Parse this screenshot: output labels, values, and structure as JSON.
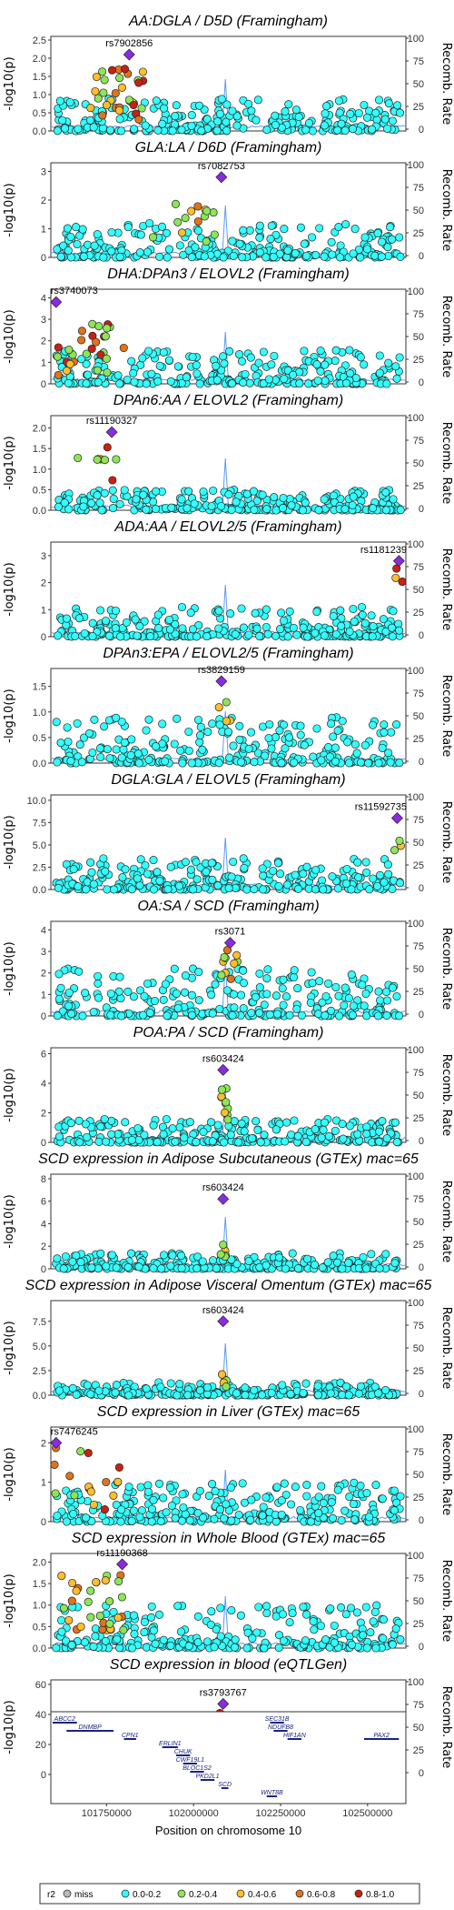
{
  "chart_data": {
    "type": "scatter",
    "xlabel": "Position on chromosome 10",
    "x_ticks": [
      101750000,
      102000000,
      102250000,
      102500000
    ],
    "xlim": [
      101590000,
      102610000
    ],
    "ylabel_left": "-log10(p)",
    "ylabel_right": "Recomb. Rate",
    "right_ticks": [
      0,
      25,
      50,
      75,
      100
    ],
    "ld_colors": {
      "miss": "#b8b8b8",
      "0.0-0.2": "#33ffff",
      "0.2-0.4": "#8ce657",
      "0.4-0.6": "#ffbe2b",
      "0.6-0.8": "#e0731c",
      "0.8-1.0": "#c72114"
    },
    "lead_color": "#8a2be2",
    "legend": {
      "title": "r2",
      "items": [
        {
          "key": "miss",
          "label": "miss"
        },
        {
          "key": "0.0-0.2",
          "label": "0.0-0.2"
        },
        {
          "key": "0.2-0.4",
          "label": "0.2-0.4"
        },
        {
          "key": "0.4-0.6",
          "label": "0.4-0.6"
        },
        {
          "key": "0.6-0.8",
          "label": "0.6-0.8"
        },
        {
          "key": "0.8-1.0",
          "label": "0.8-1.0"
        }
      ]
    },
    "panels": [
      {
        "title": "AA:DGLA / D5D (Framingham)",
        "ylim": [
          0,
          2.6
        ],
        "yticks": [
          0.0,
          0.5,
          1.0,
          1.5,
          2.0,
          2.5
        ],
        "tick_dec": 1,
        "lead": {
          "snp": "rs7902856",
          "x": 101815000,
          "y": 2.1
        },
        "scatter": {
          "cluster": "early-ld",
          "peak": 1.5,
          "bg": 0.9
        },
        "recomb_peaks": [
          102090000
        ]
      },
      {
        "title": "GLA:LA / D6D (Framingham)",
        "ylim": [
          0,
          3.3
        ],
        "yticks": [
          0,
          1,
          2,
          3
        ],
        "tick_dec": 0,
        "lead": {
          "snp": "rs7082753",
          "x": 102080000,
          "y": 2.8
        },
        "scatter": {
          "cluster": "mid-ld",
          "peak": 2.0,
          "bg": 1.2
        },
        "recomb_peaks": [
          102090000
        ]
      },
      {
        "title": "DHA:DPAn3 / ELOVL2 (Framingham)",
        "ylim": [
          0,
          4.4
        ],
        "yticks": [
          0,
          1,
          2,
          3,
          4
        ],
        "tick_dec": 0,
        "lead": {
          "snp": "rs3740073",
          "x": 101605000,
          "y": 3.8
        },
        "scatter": {
          "cluster": "left-ld",
          "peak": 2.8,
          "bg": 1.6
        },
        "recomb_peaks": [
          102090000
        ]
      },
      {
        "title": "DPAn6:AA / ELOVL2 (Framingham)",
        "ylim": [
          0,
          2.3
        ],
        "yticks": [
          0.0,
          0.5,
          1.0,
          1.5,
          2.0
        ],
        "tick_dec": 1,
        "lead": {
          "snp": "rs11190327",
          "x": 101765000,
          "y": 1.9
        },
        "scatter": {
          "cluster": "sparse-ld",
          "peak": 1.6,
          "bg": 0.5
        },
        "recomb_peaks": [
          102090000
        ]
      },
      {
        "title": "ADA:AA / ELOVL2/5 (Framingham)",
        "ylim": [
          0,
          3.5
        ],
        "yticks": [
          0,
          1,
          2,
          3
        ],
        "tick_dec": 0,
        "lead": {
          "snp": "rs1181239",
          "x": 102590000,
          "y": 2.8
        },
        "scatter": {
          "cluster": "right-ld",
          "peak": 2.2,
          "bg": 1.1
        },
        "recomb_peaks": [
          102090000
        ]
      },
      {
        "title": "DPAn3:EPA / ELOVL2/5 (Framingham)",
        "ylim": [
          0,
          1.85
        ],
        "yticks": [
          0.0,
          0.5,
          1.0,
          1.5
        ],
        "tick_dec": 1,
        "lead": {
          "snp": "rs3829159",
          "x": 102080000,
          "y": 1.6
        },
        "scatter": {
          "cluster": "mid-few",
          "peak": 1.4,
          "bg": 0.9
        },
        "recomb_peaks": [
          102090000
        ]
      },
      {
        "title": "DGLA:GLA / ELOVL5 (Framingham)",
        "ylim": [
          0,
          10.6
        ],
        "yticks": [
          0.0,
          2.5,
          5.0,
          7.5,
          10.0
        ],
        "tick_dec": 1,
        "lead": {
          "snp": "rs11592735",
          "x": 102585000,
          "y": 8.0
        },
        "scatter": {
          "cluster": "right-few",
          "peak": 6.0,
          "bg": 3.5
        },
        "recomb_peaks": [
          102090000
        ]
      },
      {
        "title": "OA:SA / SCD (Framingham)",
        "ylim": [
          0,
          4.4
        ],
        "yticks": [
          0,
          1,
          2,
          3,
          4
        ],
        "tick_dec": 0,
        "lead": {
          "snp": "rs3071",
          "x": 102105000,
          "y": 3.4
        },
        "scatter": {
          "cluster": "scd",
          "peak": 3.0,
          "bg": 2.2
        },
        "recomb_peaks": [
          102090000
        ]
      },
      {
        "title": "POA:PA / SCD (Framingham)",
        "ylim": [
          0,
          6.4
        ],
        "yticks": [
          0,
          2,
          4,
          6
        ],
        "tick_dec": 0,
        "lead": {
          "snp": "rs603424",
          "x": 102085000,
          "y": 4.9
        },
        "scatter": {
          "cluster": "scd-tall",
          "peak": 4.0,
          "bg": 1.6
        },
        "recomb_peaks": [
          102090000
        ]
      },
      {
        "title": "SCD expression in Adipose Subcutaneous (GTEx) mac=65",
        "ylim": [
          0,
          8.4
        ],
        "yticks": [
          0,
          2,
          4,
          6,
          8
        ],
        "tick_dec": 0,
        "lead": {
          "snp": "rs603424",
          "x": 102085000,
          "y": 6.2
        },
        "scatter": {
          "cluster": "scd-low",
          "peak": 2.6,
          "bg": 1.4
        },
        "recomb_peaks": [
          102090000
        ]
      },
      {
        "title": "SCD expression in Adipose Visceral Omentum (GTEx) mac=65",
        "ylim": [
          0,
          9.6
        ],
        "yticks": [
          0.0,
          2.5,
          5.0,
          7.5
        ],
        "tick_dec": 1,
        "lead": {
          "snp": "rs603424",
          "x": 102085000,
          "y": 7.5
        },
        "scatter": {
          "cluster": "scd-low",
          "peak": 2.5,
          "bg": 1.3
        },
        "recomb_peaks": [
          102090000
        ]
      },
      {
        "title": "SCD expression in Liver (GTEx) mac=65",
        "ylim": [
          0,
          2.4
        ],
        "yticks": [
          0,
          1,
          2
        ],
        "tick_dec": 0,
        "lead": {
          "snp": "rs7476245",
          "x": 101605000,
          "y": 2.0
        },
        "scatter": {
          "cluster": "liver",
          "peak": 1.8,
          "bg": 1.0
        },
        "recomb_peaks": [
          102090000
        ]
      },
      {
        "title": "SCD expression in Whole Blood (GTEx) mac=65",
        "ylim": [
          0,
          2.2
        ],
        "yticks": [
          0.0,
          0.5,
          1.0,
          1.5,
          2.0
        ],
        "tick_dec": 1,
        "lead": {
          "snp": "rs11190368",
          "x": 101795000,
          "y": 1.95
        },
        "scatter": {
          "cluster": "blood",
          "peak": 1.6,
          "bg": 1.0
        },
        "recomb_peaks": [
          102090000
        ]
      },
      {
        "title": "SCD expression in blood (eQTLGen)",
        "ylim": [
          0,
          63
        ],
        "yticks": [
          0,
          20,
          40,
          60
        ],
        "tick_dec": 0,
        "lead": {
          "snp": "rs3793767",
          "x": 102085000,
          "y": 47
        },
        "scatter": {
          "cluster": "eqtlgen",
          "peak": 40,
          "bg": 12
        },
        "recomb_peaks": [
          102090000
        ]
      }
    ],
    "genes": [
      {
        "name": "ABCC2",
        "start": 101595000,
        "end": 101665000,
        "row": 0
      },
      {
        "name": "DNMBP",
        "start": 101635000,
        "end": 101770000,
        "row": 1
      },
      {
        "name": "CPN1",
        "start": 101800000,
        "end": 101835000,
        "row": 2
      },
      {
        "name": "ERLIN1",
        "start": 101910000,
        "end": 101955000,
        "row": 3
      },
      {
        "name": "CHUK",
        "start": 101950000,
        "end": 101990000,
        "row": 4
      },
      {
        "name": "CWF19L1",
        "start": 101970000,
        "end": 102010000,
        "row": 5
      },
      {
        "name": "BLOC1S2",
        "start": 101990000,
        "end": 102030000,
        "row": 6
      },
      {
        "name": "PKD2L1",
        "start": 102020000,
        "end": 102060000,
        "row": 7
      },
      {
        "name": "SCD",
        "start": 102080000,
        "end": 102100000,
        "row": 8
      },
      {
        "name": "SEC31B",
        "start": 102220000,
        "end": 102260000,
        "row": 0
      },
      {
        "name": "NDUFB8",
        "start": 102230000,
        "end": 102270000,
        "row": 1
      },
      {
        "name": "HIF1AN",
        "start": 102270000,
        "end": 102310000,
        "row": 2
      },
      {
        "name": "WNT8B",
        "start": 102210000,
        "end": 102240000,
        "row": 9
      },
      {
        "name": "PAX2",
        "start": 102490000,
        "end": 102590000,
        "row": 2
      }
    ]
  }
}
